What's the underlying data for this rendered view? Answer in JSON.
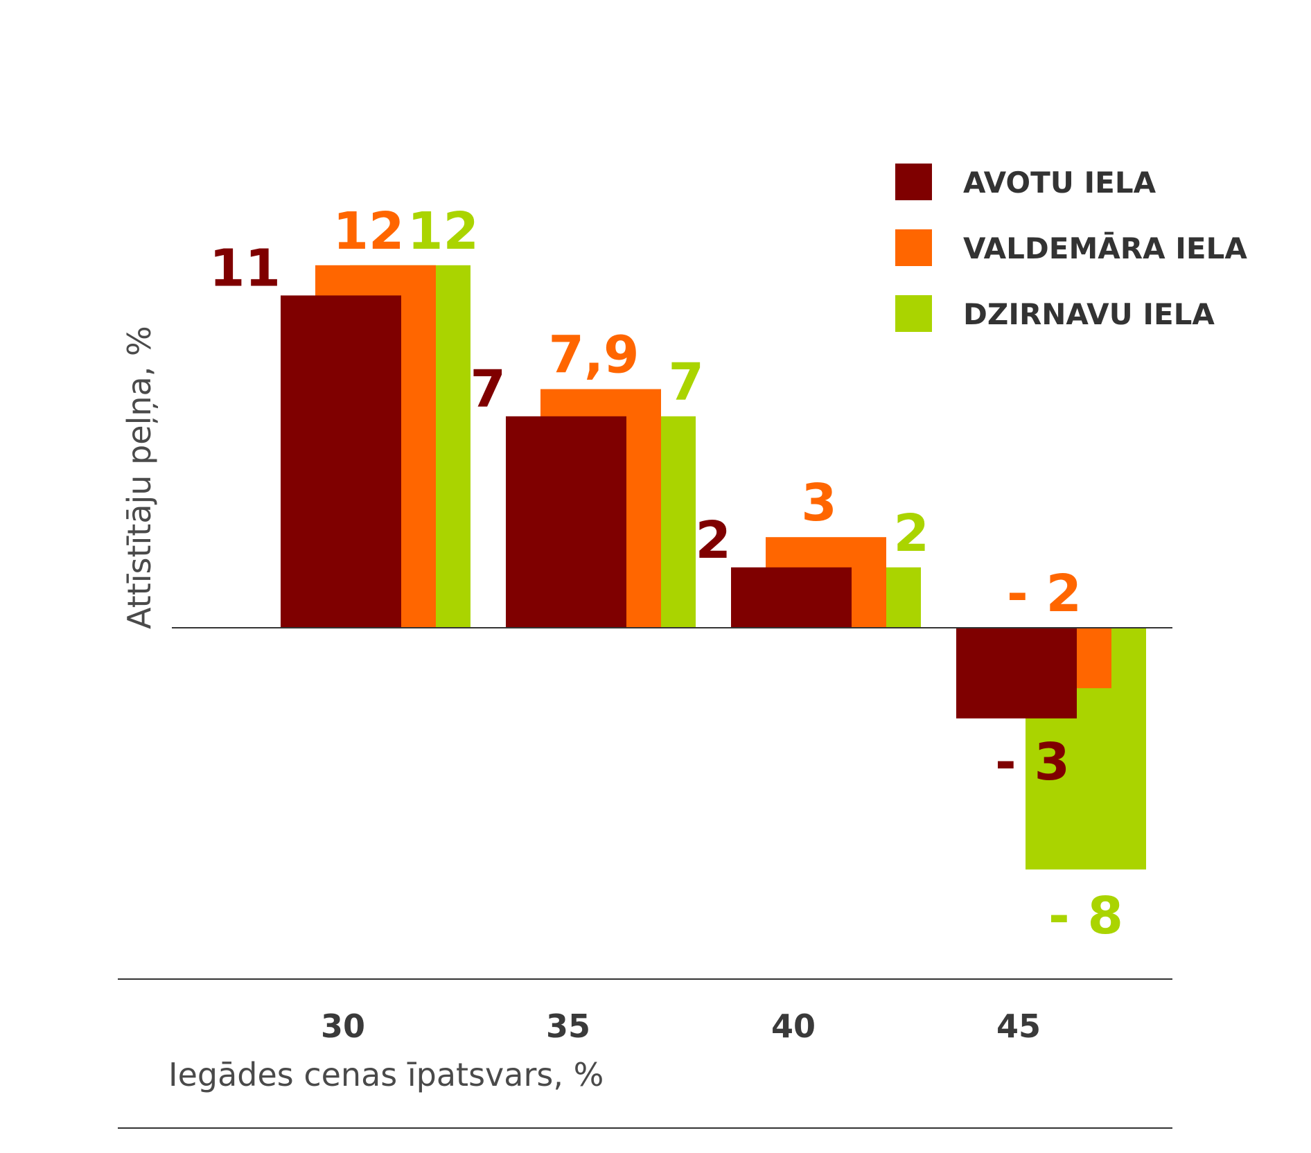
{
  "chart_data": {
    "type": "bar",
    "title": "",
    "xlabel": "Iegādes cenas īpatsvars, %",
    "ylabel": "Attīstītāju peļņa, %",
    "categories": [
      "30",
      "35",
      "40",
      "45"
    ],
    "series": [
      {
        "name": "AVOTU IELA",
        "color": "#7f0000",
        "values": [
          11,
          7,
          2,
          -3
        ],
        "labels": [
          "11",
          "7",
          "2",
          "- 3"
        ]
      },
      {
        "name": "VALDEMĀRA IELA",
        "color": "#ff6600",
        "values": [
          12,
          7.9,
          3,
          -2
        ],
        "labels": [
          "12",
          "7,9",
          "3",
          "- 2"
        ]
      },
      {
        "name": "DZIRNAVU IELA",
        "color": "#aad400",
        "values": [
          12,
          7,
          2,
          -8
        ],
        "labels": [
          "12",
          "7",
          "2",
          "- 8"
        ]
      }
    ],
    "legend_position": "top-right",
    "grid": false
  }
}
